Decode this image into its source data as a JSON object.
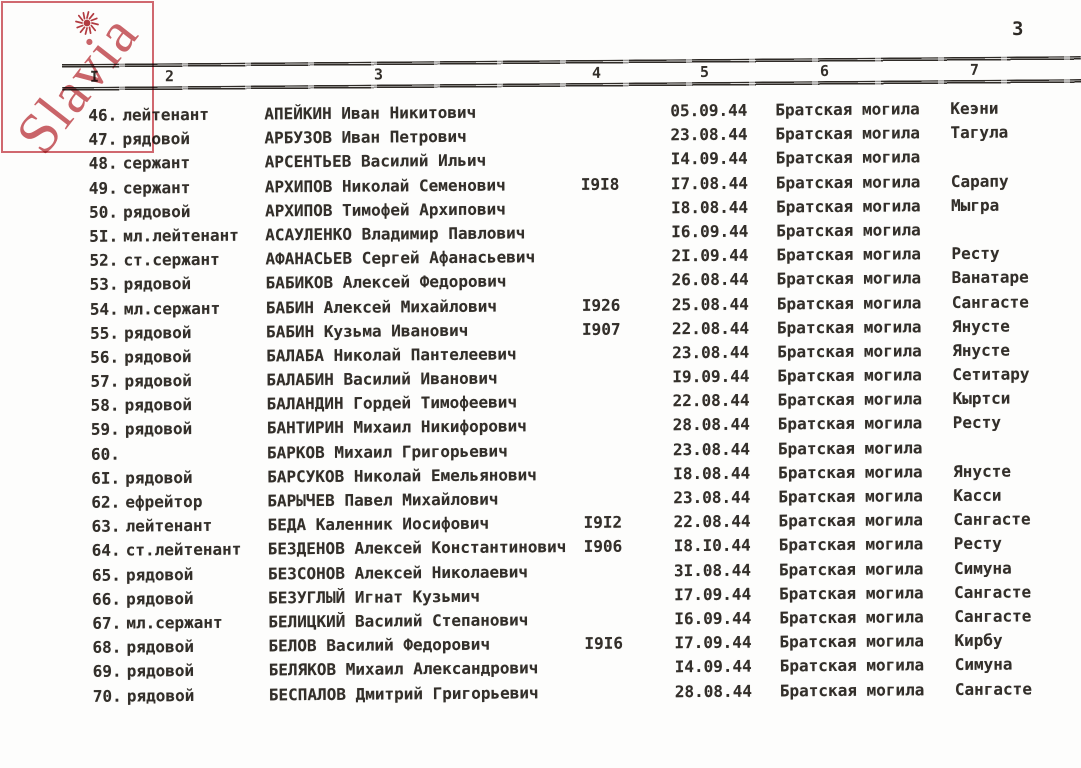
{
  "page": {
    "number": "3"
  },
  "watermark": {
    "text": "Slavia",
    "icon": "sun-icon",
    "accent_color": "#c7444c"
  },
  "colors": {
    "ink": "#332f2a",
    "paper": "#fdfdfc",
    "stamp_red": "#c5585e"
  },
  "table": {
    "columns": [
      "I",
      "2",
      "3",
      "4",
      "5",
      "6",
      "7"
    ],
    "rows": [
      {
        "num": "46.",
        "rank": "лейтенант",
        "name": "АПЕЙКИН Иван Никитович",
        "year": "",
        "date": "05.09.44",
        "grave": "Братская могила",
        "place": "Кеэни"
      },
      {
        "num": "47.",
        "rank": "рядовой",
        "name": "АРБУЗОВ Иван Петрович",
        "year": "",
        "date": "23.08.44",
        "grave": "Братская могила",
        "place": "Тагула"
      },
      {
        "num": "48.",
        "rank": "сержант",
        "name": "АРСЕНТЬЕВ Василий Ильич",
        "year": "",
        "date": "I4.09.44",
        "grave": "Братская могила",
        "place": ""
      },
      {
        "num": "49.",
        "rank": "сержант",
        "name": "АРХИПОВ Николай Семенович",
        "year": "I9I8",
        "date": "I7.08.44",
        "grave": "Братская могила",
        "place": "Сарапу"
      },
      {
        "num": "50.",
        "rank": "рядовой",
        "name": "АРХИПОВ Тимофей Архипович",
        "year": "",
        "date": "I8.08.44",
        "grave": "Братская могила",
        "place": "Мыгра"
      },
      {
        "num": "5I.",
        "rank": "мл.лейтенант",
        "name": "АСАУЛЕНКО Владимир Павлович",
        "year": "",
        "date": "I6.09.44",
        "grave": "Братская могила",
        "place": ""
      },
      {
        "num": "52.",
        "rank": "ст.сержант",
        "name": "АФАНАСЬЕВ Сергей Афанасьевич",
        "year": "",
        "date": "2I.09.44",
        "grave": "Братская могила",
        "place": "Ресту"
      },
      {
        "num": "53.",
        "rank": "рядовой",
        "name": "БАБИКОВ Алексей Федорович",
        "year": "",
        "date": "26.08.44",
        "grave": "Братская могила",
        "place": "Ванатаре"
      },
      {
        "num": "54.",
        "rank": "мл.сержант",
        "name": "БАБИН Алексей Михайлович",
        "year": "I926",
        "date": "25.08.44",
        "grave": "Братская могила",
        "place": "Сангасте"
      },
      {
        "num": "55.",
        "rank": "рядовой",
        "name": "БАБИН Кузьма Иванович",
        "year": "I907",
        "date": "22.08.44",
        "grave": "Братская могила",
        "place": "Янусте"
      },
      {
        "num": "56.",
        "rank": "рядовой",
        "name": "БАЛАБА Николай Пантелеевич",
        "year": "",
        "date": "23.08.44",
        "grave": "Братская могила",
        "place": "Янусте"
      },
      {
        "num": "57.",
        "rank": "рядовой",
        "name": "БАЛАБИН Василий Иванович",
        "year": "",
        "date": "I9.09.44",
        "grave": "Братская могила",
        "place": "Сетитару"
      },
      {
        "num": "58.",
        "rank": "рядовой",
        "name": "БАЛАНДИН Гордей Тимофеевич",
        "year": "",
        "date": "22.08.44",
        "grave": "Братская могила",
        "place": "Кыртси"
      },
      {
        "num": "59.",
        "rank": "рядовой",
        "name": "БАНТИРИН Михаил Никифорович",
        "year": "",
        "date": "28.08.44",
        "grave": "Братская могила",
        "place": "Ресту"
      },
      {
        "num": "60.",
        "rank": "",
        "name": "БАРКОВ Михаил Григорьевич",
        "year": "",
        "date": "23.08.44",
        "grave": "Братская могила",
        "place": ""
      },
      {
        "num": "6I.",
        "rank": "рядовой",
        "name": "БАРСУКОВ Николай Емельянович",
        "year": "",
        "date": "I8.08.44",
        "grave": "Братская могила",
        "place": "Янусте"
      },
      {
        "num": "62.",
        "rank": "ефрейтор",
        "name": "БАРЫЧЕВ Павел Михайлович",
        "year": "",
        "date": "23.08.44",
        "grave": "Братская могила",
        "place": "Касси"
      },
      {
        "num": "63.",
        "rank": "лейтенант",
        "name": "БЕДА Каленник Иосифович",
        "year": "I9I2",
        "date": "22.08.44",
        "grave": "Братская могила",
        "place": "Сангасте"
      },
      {
        "num": "64.",
        "rank": "ст.лейтенант",
        "name": "БЕЗДЕНОВ Алексей Константинович",
        "year": "I906",
        "date": "I8.I0.44",
        "grave": "Братская могила",
        "place": "Ресту"
      },
      {
        "num": "65.",
        "rank": "рядовой",
        "name": "БЕЗСОНОВ Алексей Николаевич",
        "year": "",
        "date": "3I.08.44",
        "grave": "Братская могила",
        "place": "Симуна"
      },
      {
        "num": "66.",
        "rank": "рядовой",
        "name": "БЕЗУГЛЫЙ Игнат Кузьмич",
        "year": "",
        "date": "I7.09.44",
        "grave": "Братская могила",
        "place": "Сангасте"
      },
      {
        "num": "67.",
        "rank": "мл.сержант",
        "name": "БЕЛИЦКИЙ Василий Степанович",
        "year": "",
        "date": "I6.09.44",
        "grave": "Братская могила",
        "place": "Сангасте"
      },
      {
        "num": "68.",
        "rank": "рядовой",
        "name": "БЕЛОВ Василий Федорович",
        "year": "I9I6",
        "date": "I7.09.44",
        "grave": "Братская могила",
        "place": "Кирбу"
      },
      {
        "num": "69.",
        "rank": "рядовой",
        "name": "БЕЛЯКОВ Михаил Александрович",
        "year": "",
        "date": "I4.09.44",
        "grave": "Братская могила",
        "place": "Симуна"
      },
      {
        "num": "70.",
        "rank": "рядовой",
        "name": "БЕСПАЛОВ Дмитрий Григорьевич",
        "year": "",
        "date": "28.08.44",
        "grave": "Братская могила",
        "place": "Сангасте"
      }
    ]
  }
}
